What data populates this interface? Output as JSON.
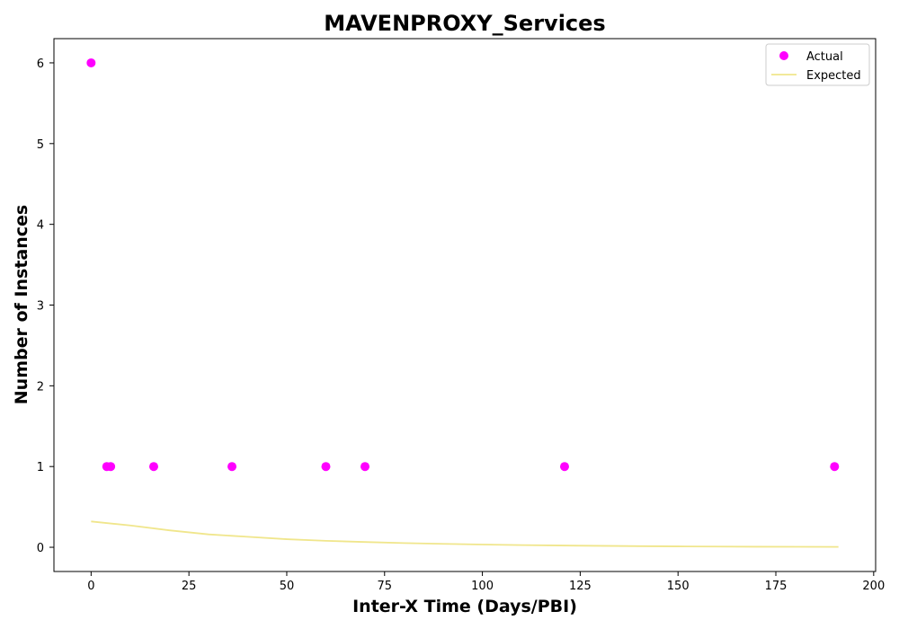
{
  "chart_data": {
    "type": "scatter",
    "title": "MAVENPROXY_Services",
    "xlabel": "Inter-X Time (Days/PBI)",
    "ylabel": "Number of Instances",
    "xlim": [
      -9.5,
      200.5
    ],
    "ylim": [
      -0.3,
      6.3
    ],
    "xticks": [
      0,
      25,
      50,
      75,
      100,
      125,
      150,
      175,
      200
    ],
    "yticks": [
      0,
      1,
      2,
      3,
      4,
      5,
      6
    ],
    "grid": false,
    "legend_position": "top-right",
    "series": [
      {
        "name": "Actual",
        "kind": "scatter",
        "color": "#ff00ff",
        "points": [
          {
            "x": 0,
            "y": 6
          },
          {
            "x": 4,
            "y": 1
          },
          {
            "x": 5,
            "y": 1
          },
          {
            "x": 16,
            "y": 1
          },
          {
            "x": 36,
            "y": 1
          },
          {
            "x": 60,
            "y": 1
          },
          {
            "x": 70,
            "y": 1
          },
          {
            "x": 121,
            "y": 1
          },
          {
            "x": 190,
            "y": 1
          }
        ]
      },
      {
        "name": "Expected",
        "kind": "line",
        "color": "#f0e68c",
        "points": [
          {
            "x": 0,
            "y": 0.32
          },
          {
            "x": 10,
            "y": 0.27
          },
          {
            "x": 20,
            "y": 0.21
          },
          {
            "x": 30,
            "y": 0.16
          },
          {
            "x": 40,
            "y": 0.13
          },
          {
            "x": 50,
            "y": 0.1
          },
          {
            "x": 60,
            "y": 0.08
          },
          {
            "x": 70,
            "y": 0.065
          },
          {
            "x": 80,
            "y": 0.052
          },
          {
            "x": 90,
            "y": 0.042
          },
          {
            "x": 100,
            "y": 0.034
          },
          {
            "x": 110,
            "y": 0.027
          },
          {
            "x": 120,
            "y": 0.022
          },
          {
            "x": 130,
            "y": 0.018
          },
          {
            "x": 140,
            "y": 0.014
          },
          {
            "x": 150,
            "y": 0.011
          },
          {
            "x": 160,
            "y": 0.009
          },
          {
            "x": 170,
            "y": 0.007
          },
          {
            "x": 180,
            "y": 0.006
          },
          {
            "x": 191,
            "y": 0.005
          }
        ]
      }
    ]
  }
}
